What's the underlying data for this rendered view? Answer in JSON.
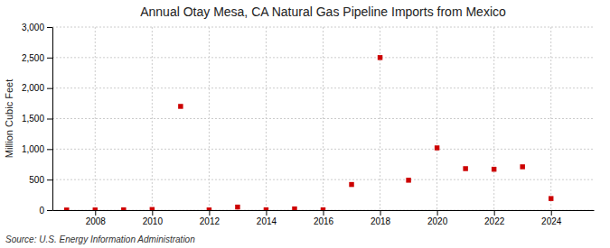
{
  "chart_data": {
    "type": "scatter",
    "title": "Annual Otay Mesa, CA Natural Gas Pipeline Imports from Mexico",
    "y_label": "Million Cubic Feet",
    "annotations": [
      "Source: U.S. Energy Information Administration"
    ],
    "x": [
      2007,
      2008,
      2009,
      2010,
      2011,
      2012,
      2013,
      2014,
      2015,
      2016,
      2017,
      2018,
      2019,
      2020,
      2021,
      2022,
      2023,
      2024
    ],
    "values": [
      2,
      3,
      5,
      10,
      1700,
      3,
      50,
      5,
      20,
      5,
      420,
      2500,
      490,
      1020,
      680,
      670,
      710,
      190
    ],
    "color": "#cc0000",
    "marker": "square",
    "xlim": [
      2006.5,
      2025.5
    ],
    "xticks": [
      2008,
      2010,
      2012,
      2014,
      2016,
      2018,
      2020,
      2022,
      2024
    ],
    "ylim": [
      0,
      3000
    ],
    "yticks": [
      0,
      500,
      {
        "value": 1000,
        "label": "1,000"
      },
      {
        "value": 1500,
        "label": "1,500"
      },
      {
        "value": 2000,
        "label": "2,000"
      },
      {
        "value": 2500,
        "label": "2,500"
      },
      {
        "value": 3000,
        "label": "3,000"
      }
    ],
    "grid": true
  }
}
